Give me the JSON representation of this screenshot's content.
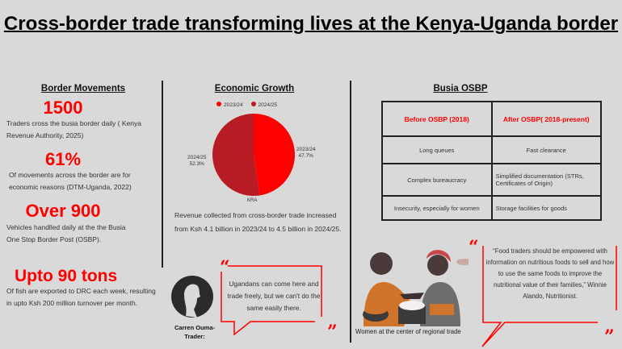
{
  "title": "Cross-border trade transforming lives at the Kenya-Uganda border",
  "border_movements": {
    "heading": "Border Movements",
    "stats": [
      {
        "value": "1500",
        "text": "Traders cross the busia border daily ( Kenya Revenue Authority, 2025)"
      },
      {
        "value": "61%",
        "text": "Of movements across the border are for economic reasons (DTM-Uganda, 2022)"
      },
      {
        "value": "Over 900",
        "text": "Vehicles handlled daily at the the Busia One  Stop Border Post (OSBP)."
      },
      {
        "value": "Upto 90 tons",
        "text": "Of fish are exported to DRC each week, resulting in upto Ksh 200 million turnover per month."
      }
    ]
  },
  "economic_growth": {
    "heading": "Economic Growth",
    "description": "Revenue collected from cross-border trade increased from Ksh 4.1 billion in 2023/24 to 4.5 billion in 2024/25."
  },
  "chart_data": {
    "type": "pie",
    "categories": [
      "2023/24",
      "2024/25"
    ],
    "values": [
      47.7,
      52.3
    ],
    "data_labels": [
      "47.7%",
      "52.3%"
    ],
    "colors": [
      "#ff0000",
      "#b71c24"
    ],
    "xlabel": "KRA",
    "legend": "top"
  },
  "busia_osbp": {
    "heading": "Busia OSBP",
    "headers": [
      "Before OSBP (2018)",
      "After OSBP( 2018-present)"
    ],
    "rows": [
      [
        "Long queues",
        "Fast clearance"
      ],
      [
        "Complex bureaucracy",
        "Simplified documentation (STRs, Certificates of Origin)"
      ],
      [
        "Insecurity, especially for women",
        "Storage facilities for goods"
      ]
    ]
  },
  "trader_quote": {
    "name": "Carren Ouma-Trader:",
    "text": "Ugandans can come here and trade freely, but we can't do the same easily there."
  },
  "image_caption": "Women at the center of regional trade",
  "nutritionist_quote": {
    "text": "“Food traders should be empowered with information on nutritious foods to sell and how to use the same foods to improve the nutritional value of their families,” Winnie Alando, Nutritionist."
  }
}
